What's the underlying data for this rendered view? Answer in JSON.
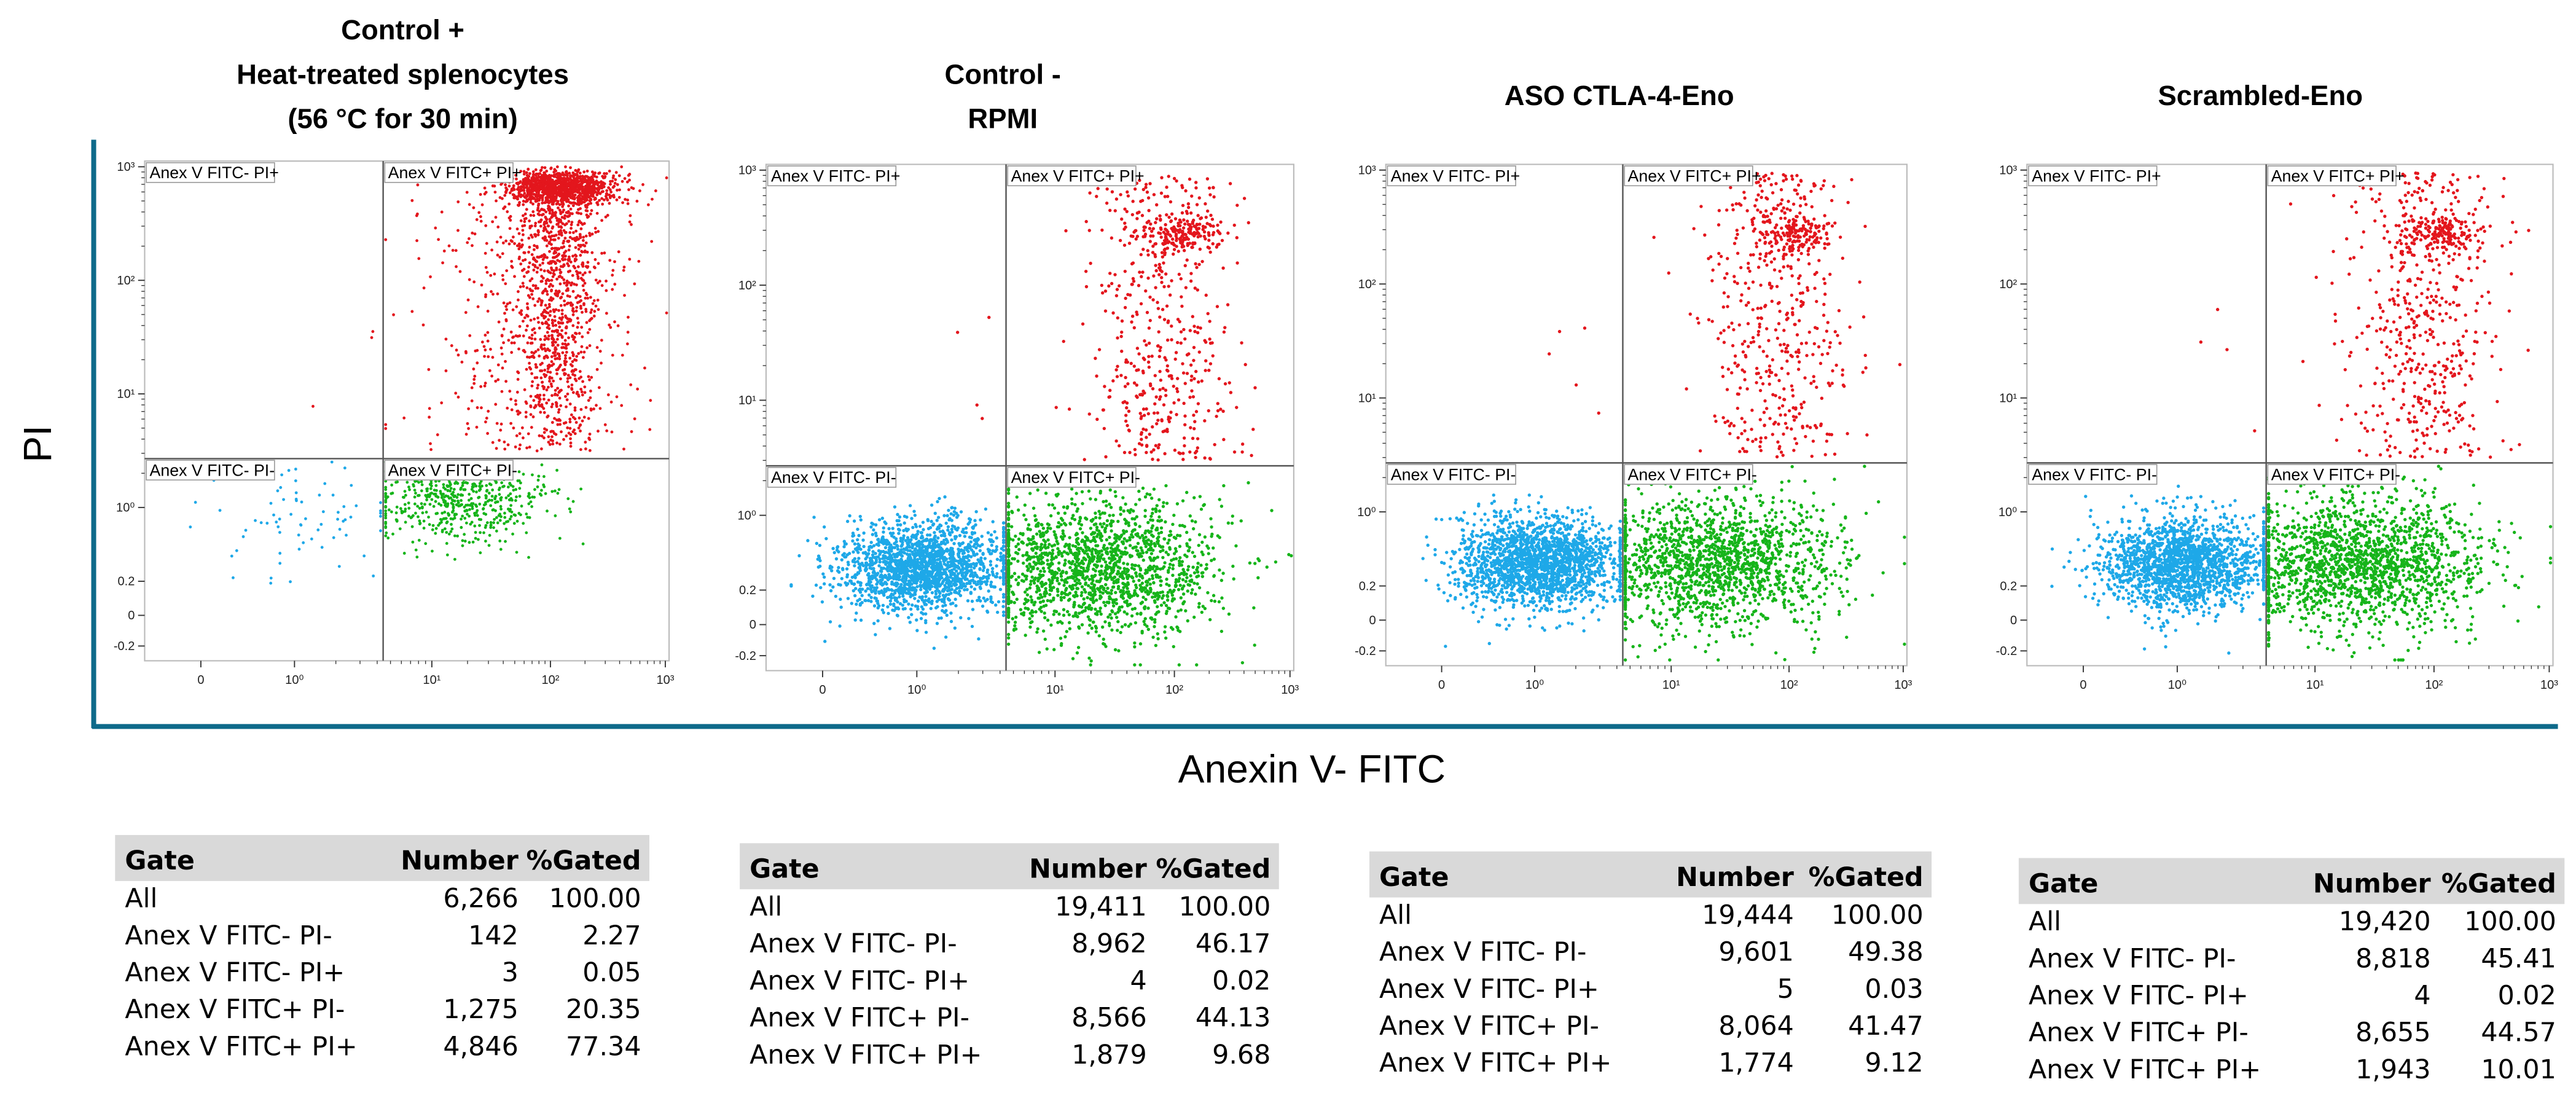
{
  "figure": {
    "y_axis_label": "PI",
    "x_axis_label": "Anexin V- FITC"
  },
  "colors": {
    "axis_frame": "#0e6a8a",
    "pi_plus_annexin_plus": "#e3161d",
    "annexin_plus_pi_minus": "#16b41a",
    "annexin_minus_pi_minus": "#1ea8e8",
    "table_header_bg": "#d9d9d9"
  },
  "chart_data": [
    {
      "type": "scatter",
      "title_lines": [
        "Control +",
        "Heat-treated splenocytes",
        "(56 °C for 30 min)"
      ],
      "x_ticks": [
        "0",
        "10⁰",
        "10¹",
        "10²",
        "10³"
      ],
      "y_ticks": [
        "10³",
        "10²",
        "10¹",
        "10⁰",
        "0.2",
        "0",
        "-0.2"
      ],
      "quadrant_labels": {
        "top_left": "Anex V FITC- PI+",
        "top_right": "Anex V FITC+ PI+",
        "bottom_left": "Anex V FITC- PI-",
        "bottom_right": "Anex V FITC+ PI-"
      },
      "counts": {
        "all": 6266,
        "fitc_neg_pi_neg": 142,
        "fitc_neg_pi_pos": 3,
        "fitc_pos_pi_neg": 1275,
        "fitc_pos_pi_pos": 4846
      },
      "table": {
        "headers": [
          "Gate",
          "Number",
          "%Gated"
        ],
        "rows": [
          [
            "All",
            "6,266",
            "100.00"
          ],
          [
            "Anex V FITC- PI-",
            "142",
            "2.27"
          ],
          [
            "Anex V FITC- PI+",
            "3",
            "0.05"
          ],
          [
            "Anex V FITC+ PI-",
            "1,275",
            "20.35"
          ],
          [
            "Anex V FITC+ PI+",
            "4,846",
            "77.34"
          ]
        ]
      }
    },
    {
      "type": "scatter",
      "title_lines": [
        "Control -",
        "RPMI"
      ],
      "x_ticks": [
        "0",
        "10⁰",
        "10¹",
        "10²",
        "10³"
      ],
      "y_ticks": [
        "10³",
        "10²",
        "10¹",
        "10⁰",
        "0.2",
        "0",
        "-0.2"
      ],
      "quadrant_labels": {
        "top_left": "Anex V FITC- PI+",
        "top_right": "Anex V FITC+ PI+",
        "bottom_left": "Anex V FITC- PI-",
        "bottom_right": "Anex V FITC+ PI-"
      },
      "counts": {
        "all": 19411,
        "fitc_neg_pi_neg": 8962,
        "fitc_neg_pi_pos": 4,
        "fitc_pos_pi_neg": 8566,
        "fitc_pos_pi_pos": 1879
      },
      "table": {
        "headers": [
          "Gate",
          "Number",
          "%Gated"
        ],
        "rows": [
          [
            "All",
            "19,411",
            "100.00"
          ],
          [
            "Anex V FITC- PI-",
            "8,962",
            "46.17"
          ],
          [
            "Anex V FITC- PI+",
            "4",
            "0.02"
          ],
          [
            "Anex V FITC+ PI-",
            "8,566",
            "44.13"
          ],
          [
            "Anex V FITC+ PI+",
            "1,879",
            "9.68"
          ]
        ]
      }
    },
    {
      "type": "scatter",
      "title_lines": [
        "ASO CTLA-4-Eno"
      ],
      "x_ticks": [
        "0",
        "10⁰",
        "10¹",
        "10²",
        "10³"
      ],
      "y_ticks": [
        "10³",
        "10²",
        "10¹",
        "10⁰",
        "0.2",
        "0",
        "-0.2"
      ],
      "quadrant_labels": {
        "top_left": "Anex V FITC- PI+",
        "top_right": "Anex V FITC+ PI+",
        "bottom_left": "Anex V FITC- PI-",
        "bottom_right": "Anex V FITC+ PI-"
      },
      "counts": {
        "all": 19444,
        "fitc_neg_pi_neg": 9601,
        "fitc_neg_pi_pos": 5,
        "fitc_pos_pi_neg": 8064,
        "fitc_pos_pi_pos": 1774
      },
      "table": {
        "headers": [
          "Gate",
          "Number",
          "%Gated"
        ],
        "rows": [
          [
            "All",
            "19,444",
            "100.00"
          ],
          [
            "Anex V FITC- PI-",
            "9,601",
            "49.38"
          ],
          [
            "Anex V FITC- PI+",
            "5",
            "0.03"
          ],
          [
            "Anex V FITC+ PI-",
            "8,064",
            "41.47"
          ],
          [
            "Anex V FITC+ PI+",
            "1,774",
            "9.12"
          ]
        ]
      }
    },
    {
      "type": "scatter",
      "title_lines": [
        "Scrambled-Eno"
      ],
      "x_ticks": [
        "0",
        "10⁰",
        "10¹",
        "10²",
        "10³"
      ],
      "y_ticks": [
        "10³",
        "10²",
        "10¹",
        "10⁰",
        "0.2",
        "0",
        "-0.2"
      ],
      "quadrant_labels": {
        "top_left": "Anex V FITC- PI+",
        "top_right": "Anex V FITC+ PI+",
        "bottom_left": "Anex V FITC- PI-",
        "bottom_right": "Anex V FITC+ PI-"
      },
      "counts": {
        "all": 19420,
        "fitc_neg_pi_neg": 8818,
        "fitc_neg_pi_pos": 4,
        "fitc_pos_pi_neg": 8655,
        "fitc_pos_pi_pos": 1943
      },
      "table": {
        "headers": [
          "Gate",
          "Number",
          "%Gated"
        ],
        "rows": [
          [
            "All",
            "19,420",
            "100.00"
          ],
          [
            "Anex V FITC- PI-",
            "8,818",
            "45.41"
          ],
          [
            "Anex V FITC- PI+",
            "4",
            "0.02"
          ],
          [
            "Anex V FITC+ PI-",
            "8,655",
            "44.57"
          ],
          [
            "Anex V FITC+ PI+",
            "1,943",
            "10.01"
          ]
        ]
      }
    }
  ]
}
